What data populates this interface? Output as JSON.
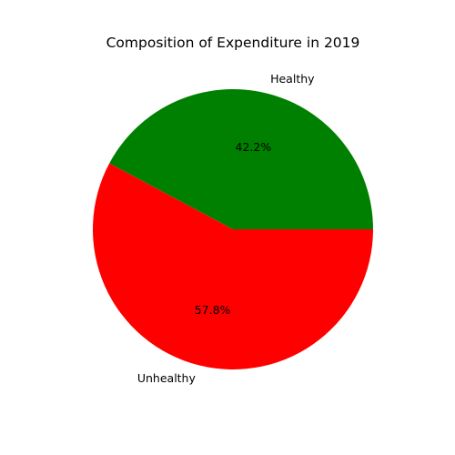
{
  "chart_data": {
    "type": "pie",
    "title": "Composition of Expenditure in 2019",
    "slices": [
      {
        "label": "Healthy",
        "value": 42.2,
        "pct_label": "42.2%",
        "color": "#008000"
      },
      {
        "label": "Unhealthy",
        "value": 57.8,
        "pct_label": "57.8%",
        "color": "#ff0000"
      }
    ],
    "start_angle_deg": 0,
    "direction": "counterclockwise",
    "legend": "none"
  }
}
